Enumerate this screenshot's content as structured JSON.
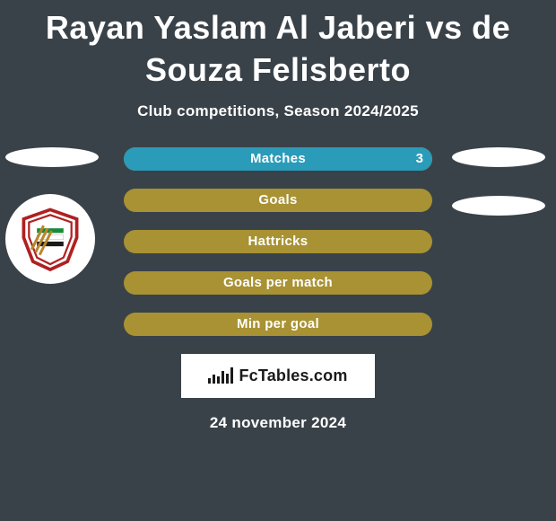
{
  "title": "Rayan Yaslam Al Jaberi vs de Souza Felisberto",
  "subtitle": "Club competitions, Season 2024/2025",
  "colors": {
    "background": "#3a4249",
    "bar_bg": "#a89233",
    "bar_fill": "#2a9bb8",
    "text": "#ffffff"
  },
  "bars": [
    {
      "label": "Matches",
      "left": "",
      "right": "3",
      "fill_pct": 100
    },
    {
      "label": "Goals",
      "left": "",
      "right": "",
      "fill_pct": 0
    },
    {
      "label": "Hattricks",
      "left": "",
      "right": "",
      "fill_pct": 0
    },
    {
      "label": "Goals per match",
      "left": "",
      "right": "",
      "fill_pct": 0
    },
    {
      "label": "Min per goal",
      "left": "",
      "right": "",
      "fill_pct": 0
    }
  ],
  "left_ovals": 1,
  "right_ovals": 2,
  "footer": {
    "brand": "FcTables.com",
    "date": "24 november 2024"
  }
}
